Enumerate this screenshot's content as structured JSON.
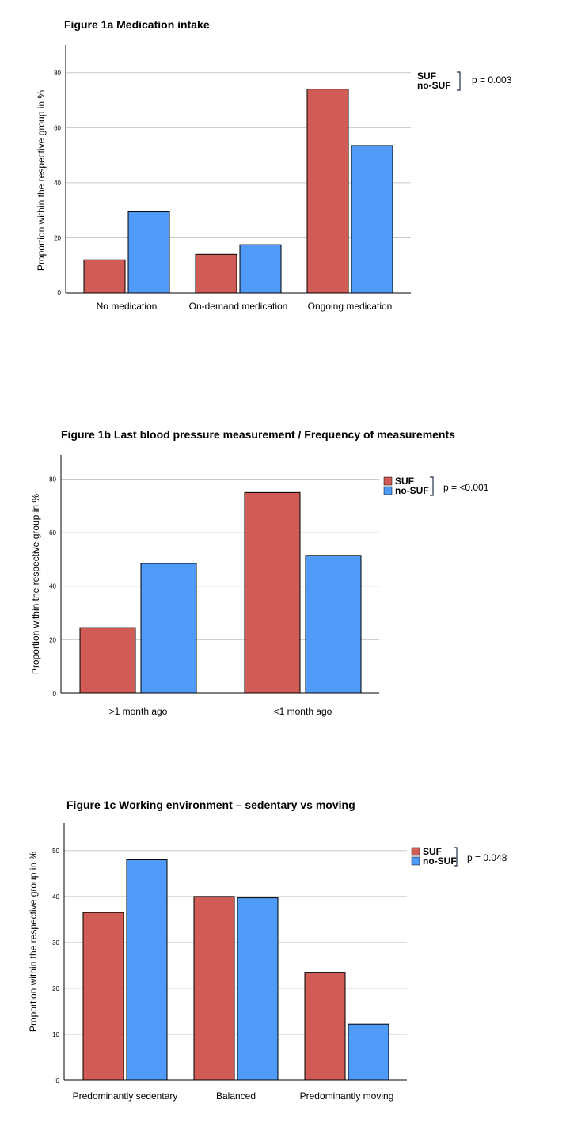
{
  "colors": {
    "suf": "#d15b55",
    "nosuf": "#4f9bf7",
    "grid": "#c8c8c8",
    "axis": "#000000"
  },
  "chart_data": [
    {
      "type": "bar",
      "title": "Figure 1a Medication intake",
      "ylabel": "Proportion within the respective group in %",
      "xlabel": "",
      "categories": [
        "No medication",
        "On-demand medication",
        "Ongoing medication"
      ],
      "series": [
        {
          "name": "SUF",
          "values": [
            12,
            14,
            74
          ]
        },
        {
          "name": "no-SUF",
          "values": [
            29.5,
            17.5,
            53.5
          ]
        }
      ],
      "ylim": [
        0,
        90
      ],
      "yticks": [
        0,
        20,
        40,
        60,
        80
      ],
      "grid": true,
      "legend_swatches": false,
      "p_value": "p = 0.003"
    },
    {
      "type": "bar",
      "title": "Figure 1b Last blood pressure measurement / Frequency of measurements",
      "ylabel": "Proportion within the respective group in %",
      "xlabel": "",
      "categories": [
        ">1 month ago",
        "<1 month ago"
      ],
      "series": [
        {
          "name": "SUF",
          "values": [
            24.5,
            75
          ]
        },
        {
          "name": "no-SUF",
          "values": [
            48.5,
            51.5
          ]
        }
      ],
      "ylim": [
        0,
        89
      ],
      "yticks": [
        0,
        20,
        40,
        60,
        80
      ],
      "grid": true,
      "legend_swatches": true,
      "p_value": "p = <0.001"
    },
    {
      "type": "bar",
      "title": "Figure 1c Working environment – sedentary vs moving",
      "ylabel": "Proportion within the respective group in %",
      "xlabel": "",
      "categories": [
        "Predominantly sedentary",
        "Balanced",
        "Predominantly moving"
      ],
      "series": [
        {
          "name": "SUF",
          "values": [
            36.5,
            40,
            23.5
          ]
        },
        {
          "name": "no-SUF",
          "values": [
            48,
            39.7,
            12.2
          ]
        }
      ],
      "ylim": [
        0,
        56
      ],
      "yticks": [
        0,
        10,
        20,
        30,
        40,
        50
      ],
      "grid": true,
      "legend_swatches": true,
      "p_value": "p = 0.048"
    }
  ]
}
